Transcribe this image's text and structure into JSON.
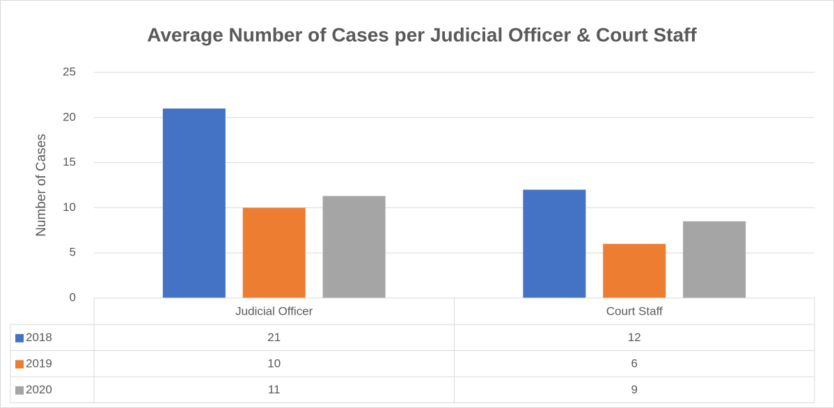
{
  "chart_data": {
    "type": "bar",
    "title": "Average Number of Cases per Judicial Officer & Court Staff",
    "y_label": "Number of Cases",
    "categories": [
      "Judicial Officer",
      "Court Staff"
    ],
    "series": [
      {
        "name": "2018",
        "color": "#4472c4",
        "values": [
          21,
          12
        ]
      },
      {
        "name": "2019",
        "color": "#ed7d31",
        "values": [
          10,
          6
        ]
      },
      {
        "name": "2020",
        "color": "#a5a5a5",
        "values": [
          11.3,
          8.5
        ],
        "value_labels": [
          "11",
          "9"
        ]
      }
    ],
    "ylim": [
      0,
      25
    ],
    "yticks": [
      0,
      5,
      10,
      15,
      20,
      25
    ],
    "grid": true,
    "data_table": true
  }
}
